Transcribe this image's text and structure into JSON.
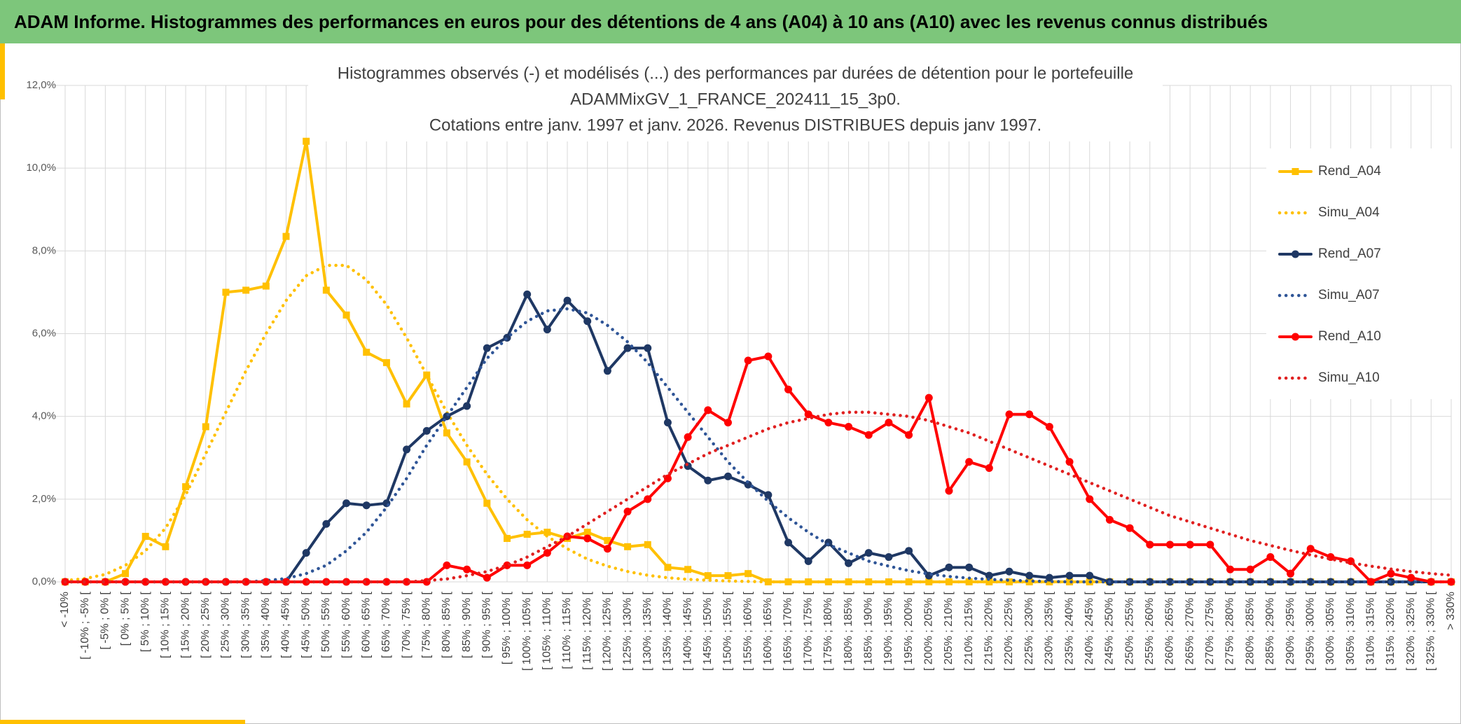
{
  "header": {
    "title": "ADAM Informe. Histogrammes des performances en euros pour des détentions de 4 ans (A04) à 10 ans (A10) avec les revenus connus distribués"
  },
  "chart_data": {
    "type": "line",
    "title": [
      "Histogrammes observés (-) et modélisés (...) des performances par durées de détention pour le portefeuille",
      "ADAMMixGV_1_FRANCE_202411_15_3p0.",
      "Cotations entre janv. 1997 et janv. 2026. Revenus DISTRIBUES depuis janv 1997."
    ],
    "categories": [
      "< -10%",
      "[ -10% ; -5% [",
      "[ -5% ; 0% [",
      "[ 0% ; 5% [",
      "[ 5% ; 10% [",
      "[ 10% ; 15% [",
      "[ 15% ; 20% [",
      "[ 20% ; 25% [",
      "[ 25% ; 30% [",
      "[ 30% ; 35% [",
      "[ 35% ; 40% [",
      "[ 40% ; 45% [",
      "[ 45% ; 50% [",
      "[ 50% ; 55% [",
      "[ 55% ; 60% [",
      "[ 60% ; 65% [",
      "[ 65% ; 70% [",
      "[ 70% ; 75% [",
      "[ 75% ; 80% [",
      "[ 80% ; 85% [",
      "[ 85% ; 90% [",
      "[ 90% ; 95% [",
      "[ 95% ; 100% [",
      "[ 100% ; 105% [",
      "[ 105% ; 110% [",
      "[ 110% ; 115% [",
      "[ 115% ; 120% [",
      "[ 120% ; 125% [",
      "[ 125% ; 130% [",
      "[ 130% ; 135% [",
      "[ 135% ; 140% [",
      "[ 140% ; 145% [",
      "[ 145% ; 150% [",
      "[ 150% ; 155% [",
      "[ 155% ; 160% [",
      "[ 160% ; 165% [",
      "[ 165% ; 170% [",
      "[ 170% ; 175% [",
      "[ 175% ; 180% [",
      "[ 180% ; 185% [",
      "[ 185% ; 190% [",
      "[ 190% ; 195% [",
      "[ 195% ; 200% [",
      "[ 200% ; 205% [",
      "[ 205% ; 210% [",
      "[ 210% ; 215% [",
      "[ 215% ; 220% [",
      "[ 220% ; 225% [",
      "[ 225% ; 230% [",
      "[ 230% ; 235% [",
      "[ 235% ; 240% [",
      "[ 240% ; 245% [",
      "[ 245% ; 250% [",
      "[ 250% ; 255% [",
      "[ 255% ; 260% [",
      "[ 260% ; 265% [",
      "[ 265% ; 270% [",
      "[ 270% ; 275% [",
      "[ 275% ; 280% [",
      "[ 280% ; 285% [",
      "[ 285% ; 290% [",
      "[ 290% ; 295% [",
      "[ 295% ; 300% [",
      "[ 300% ; 305% [",
      "[ 305% ; 310% [",
      "[ 310% ; 315% [",
      "[ 315% ; 320% [",
      "[ 320% ; 325% [",
      "[ 325% ; 330% [",
      "> 330%"
    ],
    "series": [
      {
        "name": "Rend_A04",
        "color": "#ffc000",
        "style": "solid",
        "marker": "square",
        "values": [
          0,
          0,
          0,
          0.2,
          1.1,
          0.85,
          2.3,
          3.75,
          7.0,
          7.05,
          7.15,
          8.35,
          10.65,
          7.05,
          6.45,
          5.55,
          5.3,
          4.3,
          5.0,
          3.6,
          2.9,
          1.9,
          1.05,
          1.15,
          1.2,
          1.05,
          1.2,
          1.0,
          0.85,
          0.9,
          0.35,
          0.3,
          0.15,
          0.15,
          0.2,
          0,
          0,
          0,
          0,
          0,
          0,
          0,
          0,
          0,
          0,
          0,
          0,
          0,
          0,
          0,
          0,
          0,
          0,
          0,
          0,
          0,
          0,
          0,
          0,
          0,
          0,
          0,
          0,
          0,
          0,
          0,
          0,
          0,
          0,
          0
        ]
      },
      {
        "name": "Simu_A04",
        "color": "#ffc000",
        "style": "dotted",
        "marker": null,
        "values": [
          0.03,
          0.08,
          0.18,
          0.4,
          0.75,
          1.3,
          2.1,
          3.1,
          4.1,
          5.1,
          6.0,
          6.8,
          7.4,
          7.65,
          7.65,
          7.3,
          6.7,
          5.9,
          5.0,
          4.1,
          3.3,
          2.6,
          2.0,
          1.5,
          1.1,
          0.8,
          0.55,
          0.38,
          0.25,
          0.16,
          0.1,
          0.06,
          0.04,
          0.02,
          0.01,
          0,
          0,
          0,
          0,
          0,
          0,
          0,
          0,
          0,
          0,
          0,
          0,
          0,
          0,
          0,
          0,
          0,
          0,
          0,
          0,
          0,
          0,
          0,
          0,
          0,
          0,
          0,
          0,
          0,
          0,
          0,
          0,
          0,
          0,
          0
        ]
      },
      {
        "name": "Rend_A07",
        "color": "#1f3864",
        "style": "solid",
        "marker": "circle",
        "values": [
          0,
          0,
          0,
          0,
          0,
          0,
          0,
          0,
          0,
          0,
          0,
          0,
          0.7,
          1.4,
          1.9,
          1.85,
          1.9,
          3.2,
          3.65,
          4.0,
          4.25,
          5.65,
          5.9,
          6.95,
          6.1,
          6.8,
          6.3,
          5.1,
          5.65,
          5.65,
          3.85,
          2.8,
          2.45,
          2.55,
          2.35,
          2.1,
          0.95,
          0.5,
          0.95,
          0.45,
          0.7,
          0.6,
          0.75,
          0.15,
          0.35,
          0.35,
          0.15,
          0.25,
          0.15,
          0.1,
          0.15,
          0.15,
          0,
          0,
          0,
          0,
          0,
          0,
          0,
          0,
          0,
          0,
          0,
          0,
          0,
          0,
          0,
          0,
          0,
          0
        ]
      },
      {
        "name": "Simu_A07",
        "color": "#2f5597",
        "style": "dotted",
        "marker": null,
        "values": [
          0,
          0,
          0,
          0,
          0,
          0,
          0,
          0,
          0,
          0,
          0.03,
          0.08,
          0.2,
          0.4,
          0.75,
          1.2,
          1.8,
          2.5,
          3.3,
          4.0,
          4.7,
          5.4,
          5.9,
          6.3,
          6.55,
          6.6,
          6.5,
          6.2,
          5.8,
          5.3,
          4.7,
          4.1,
          3.5,
          2.9,
          2.4,
          1.95,
          1.55,
          1.2,
          0.9,
          0.7,
          0.5,
          0.38,
          0.27,
          0.19,
          0.13,
          0.09,
          0.06,
          0.04,
          0.02,
          0.01,
          0,
          0,
          0,
          0,
          0,
          0,
          0,
          0,
          0,
          0,
          0,
          0,
          0,
          0,
          0,
          0,
          0,
          0,
          0,
          0
        ]
      },
      {
        "name": "Rend_A10",
        "color": "#ff0000",
        "style": "solid",
        "marker": "circle",
        "values": [
          0,
          0,
          0,
          0,
          0,
          0,
          0,
          0,
          0,
          0,
          0,
          0,
          0,
          0,
          0,
          0,
          0,
          0,
          0,
          0.4,
          0.3,
          0.1,
          0.4,
          0.4,
          0.7,
          1.1,
          1.05,
          0.8,
          1.7,
          2.0,
          2.5,
          3.5,
          4.15,
          3.85,
          5.35,
          5.45,
          4.65,
          4.05,
          3.85,
          3.75,
          3.55,
          3.85,
          3.55,
          4.45,
          2.2,
          2.9,
          2.75,
          4.05,
          4.05,
          3.75,
          2.9,
          2.0,
          1.5,
          1.3,
          0.9,
          0.9,
          0.9,
          0.9,
          0.3,
          0.3,
          0.6,
          0.2,
          0.8,
          0.6,
          0.5,
          0,
          0.2,
          0.1,
          0,
          0
        ]
      },
      {
        "name": "Simu_A10",
        "color": "#e02020",
        "style": "dotted",
        "marker": null,
        "values": [
          0,
          0,
          0,
          0,
          0,
          0,
          0,
          0,
          0,
          0,
          0,
          0,
          0,
          0,
          0,
          0,
          0,
          0,
          0.03,
          0.07,
          0.15,
          0.25,
          0.4,
          0.6,
          0.85,
          1.1,
          1.4,
          1.7,
          2.0,
          2.3,
          2.6,
          2.85,
          3.1,
          3.3,
          3.5,
          3.7,
          3.85,
          3.95,
          4.05,
          4.1,
          4.1,
          4.05,
          4.0,
          3.9,
          3.75,
          3.6,
          3.4,
          3.2,
          3.0,
          2.8,
          2.6,
          2.4,
          2.2,
          2.0,
          1.8,
          1.6,
          1.45,
          1.3,
          1.15,
          1.0,
          0.88,
          0.76,
          0.65,
          0.55,
          0.46,
          0.38,
          0.31,
          0.25,
          0.2,
          0.16
        ]
      }
    ],
    "ylim": [
      0,
      12
    ],
    "yticks": [
      {
        "value": 0,
        "label": "0,0%"
      },
      {
        "value": 2,
        "label": "2,0%"
      },
      {
        "value": 4,
        "label": "4,0%"
      },
      {
        "value": 6,
        "label": "6,0%"
      },
      {
        "value": 8,
        "label": "8,0%"
      },
      {
        "value": 10,
        "label": "10,0%"
      },
      {
        "value": 12,
        "label": "12,0%"
      }
    ],
    "grid": true,
    "legend": "right"
  }
}
